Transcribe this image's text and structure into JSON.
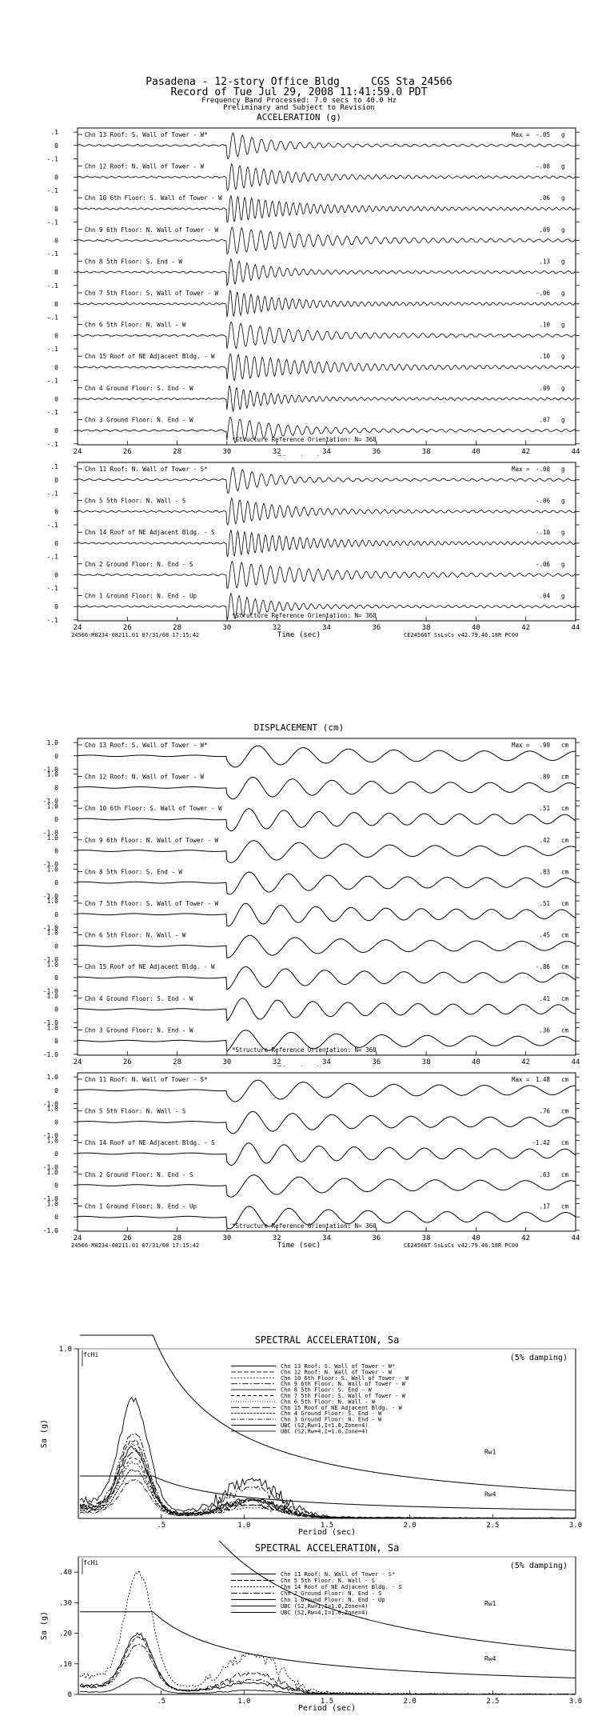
{
  "header": {
    "line1": "Pasadena - 12-story Office Bldg     CGS Sta 24566",
    "line2": "Record of Tue Jul 29, 2008 11:41:59.0 PDT",
    "line3": "Frequency Band Processed: 7.0 secs to 40.0 Hz",
    "line4": "Preliminary and Subject to Revision"
  },
  "chart_data": [
    {
      "type": "line",
      "title": "ACCELERATION (g)",
      "xlabel": "Time (sec)",
      "xlim": [
        24,
        44
      ],
      "xticks": [
        "24",
        "26",
        "28",
        "30",
        "32",
        "34",
        "36",
        "38",
        "40",
        "42",
        "44"
      ],
      "ylim": [
        -0.1,
        0.1
      ],
      "unit": "g",
      "max_label": "Max =",
      "note": "*Structure Reference Orientation: N= 360",
      "footer_left": "24566-M0234-08211.01 07/31/08 17:15:42",
      "footer_right": "CE24566T  SsLsCs  v42.79.46.18R PC00",
      "series": [
        {
          "name": "Chn 13  Roof: S. Wall of Tower - W*",
          "max": "-.05",
          "yticks": [
            ".1",
            "0",
            "-.1"
          ]
        },
        {
          "name": "Chn 12  Roof: N. Wall of Tower - W",
          "max": "-.08",
          "yticks": [
            "0",
            "-.1"
          ]
        },
        {
          "name": "Chn 10  6th Floor: S. Wall of Tower - W",
          "max": ".06",
          "yticks": [
            "0",
            "-.1"
          ]
        },
        {
          "name": "Chn 9  6th Floor: N. Wall of Tower - W",
          "max": ".09",
          "yticks": [
            "0",
            "-.1"
          ]
        },
        {
          "name": "Chn 8  5th Floor: S. End - W",
          "max": ".13",
          "yticks": [
            "0",
            "-.1"
          ]
        },
        {
          "name": "Chn 7  5th Floor: S. Wall of Tower - W",
          "max": "-.06",
          "yticks": [
            "0",
            "-.1"
          ]
        },
        {
          "name": "Chn 6  5th Floor: N. Wall - W",
          "max": ".10",
          "yticks": [
            "0",
            "-.1"
          ]
        },
        {
          "name": "Chn 15  Roof of NE Adjacent Bldg. - W",
          "max": ".10",
          "yticks": [
            "0",
            "-.1"
          ]
        },
        {
          "name": "Chn 4  Ground Floor: S. End - W",
          "max": ".09",
          "yticks": [
            "0",
            "-.1"
          ]
        },
        {
          "name": "Chn 3  Ground Floor: N. End - W",
          "max": ".07",
          "yticks": [
            "0",
            "-.1"
          ]
        }
      ]
    },
    {
      "type": "line",
      "title": "",
      "xlabel": "Time (sec)",
      "xlim": [
        24,
        44
      ],
      "xticks": [
        "24",
        "26",
        "28",
        "30",
        "32",
        "34",
        "36",
        "38",
        "40",
        "42",
        "44"
      ],
      "ylim": [
        -0.1,
        0.1
      ],
      "unit": "g",
      "max_label": "Max =",
      "note": "*Structure Reference Orientation: N= 360",
      "footer_left": "24566-M0234-08211.01 07/31/08 17:15:42",
      "footer_right": "CE24566T  SsLsCs  v42.79.46.18R PC00",
      "series": [
        {
          "name": "Chn 11  Roof: N. Wall of Tower - S*",
          "max": "-.08",
          "yticks": [
            ".1",
            "0",
            "-.1"
          ]
        },
        {
          "name": "Chn 5  5th Floor: N. Wall - S",
          "max": "-.06",
          "yticks": [
            "0",
            "-.1"
          ]
        },
        {
          "name": "Chn 14  Roof of NE Adjacent Bldg. - S",
          "max": "-.10",
          "yticks": [
            "0",
            "-.1"
          ]
        },
        {
          "name": "Chn 2  Ground Floor: N. End - S",
          "max": "-.06",
          "yticks": [
            "0",
            "-.1"
          ]
        },
        {
          "name": "Chn 1  Ground Floor: N. End - Up",
          "max": ".04",
          "yticks": [
            "0",
            "-.1"
          ]
        }
      ]
    },
    {
      "type": "line",
      "title": "DISPLACEMENT (cm)",
      "xlabel": "Time (sec)",
      "xlim": [
        24,
        44
      ],
      "xticks": [
        "24",
        "26",
        "28",
        "30",
        "32",
        "34",
        "36",
        "38",
        "40",
        "42",
        "44"
      ],
      "ylim": [
        -1.0,
        1.0
      ],
      "unit": "cm",
      "max_label": "Max =",
      "note": "*Structure Reference Orientation: N= 360",
      "footer_left": "24566-M0234-08211.01 07/31/08 17:15:42",
      "footer_right": "CE24566T  SsLsCs  v42.79.46.18R PC00",
      "series": [
        {
          "name": "Chn 13  Roof: S. Wall of Tower - W*",
          "max": ".99",
          "yticks": [
            "1.0",
            "0",
            "-1.0"
          ]
        },
        {
          "name": "Chn 12  Roof: N. Wall of Tower - W",
          "max": ".89",
          "yticks": [
            "1.0",
            "0",
            "-1.0"
          ]
        },
        {
          "name": "Chn 10  6th Floor: S. Wall of Tower - W",
          "max": ".51",
          "yticks": [
            "1.0",
            "0",
            "-1.0"
          ]
        },
        {
          "name": "Chn 9  6th Floor: N. Wall of Tower - W",
          "max": ".42",
          "yticks": [
            "1.0",
            "0",
            "-1.0"
          ]
        },
        {
          "name": "Chn 8  5th Floor: S. End - W",
          "max": ".83",
          "yticks": [
            "1.0",
            "0",
            "-1.0"
          ]
        },
        {
          "name": "Chn 7  5th Floor: S. Wall of Tower - W",
          "max": ".51",
          "yticks": [
            "1.0",
            "0",
            "-1.0"
          ]
        },
        {
          "name": "Chn 6  5th Floor: N. Wall - W",
          "max": ".45",
          "yticks": [
            "1.0",
            "0",
            "-1.0"
          ]
        },
        {
          "name": "Chn 15  Roof of NE Adjacent Bldg. - W",
          "max": "-.86",
          "yticks": [
            "1.0",
            "0",
            "-1.0"
          ]
        },
        {
          "name": "Chn 4  Ground Floor: S. End - W",
          "max": ".41",
          "yticks": [
            "1.0",
            "0",
            "-1.0"
          ]
        },
        {
          "name": "Chn 3  Ground Floor: N. End - W",
          "max": ".36",
          "yticks": [
            "1.0",
            "0",
            "-1.0"
          ]
        }
      ]
    },
    {
      "type": "line",
      "title": "",
      "xlabel": "Time (sec)",
      "xlim": [
        24,
        44
      ],
      "xticks": [
        "24",
        "26",
        "28",
        "30",
        "32",
        "34",
        "36",
        "38",
        "40",
        "42",
        "44"
      ],
      "ylim": [
        -1.0,
        1.0
      ],
      "unit": "cm",
      "max_label": "Max =",
      "note": "*Structure Reference Orientation: N= 360",
      "footer_left": "24566-M0234-08211.01 07/31/08 17:15:42",
      "footer_right": "CE24566T  SsLsCs  v42.79.46.18R PC00",
      "series": [
        {
          "name": "Chn 11  Roof: N. Wall of Tower - S*",
          "max": "1.48",
          "yticks": [
            "1.0",
            "0",
            "-1.0"
          ]
        },
        {
          "name": "Chn 5  5th Floor: N. Wall - S",
          "max": ".76",
          "yticks": [
            "1.0",
            "0",
            "-1.0"
          ]
        },
        {
          "name": "Chn 14  Roof of NE Adjacent Bldg. - S",
          "max": "-1.42",
          "yticks": [
            "1.0",
            "0",
            "-1.0"
          ]
        },
        {
          "name": "Chn 2  Ground Floor: N. End - S",
          "max": ".63",
          "yticks": [
            "1.0",
            "0",
            "-1.0"
          ]
        },
        {
          "name": "Chn 1  Ground Floor: N. End - Up",
          "max": ".17",
          "yticks": [
            "1.0",
            "0",
            "-1.0"
          ]
        }
      ]
    },
    {
      "type": "line",
      "title": "SPECTRAL ACCELERATION, Sa",
      "xlabel": "Period (sec)",
      "ylabel": "Sa (g)",
      "xlim": [
        0,
        3.0
      ],
      "ylim": [
        0,
        1.0
      ],
      "xticks": [
        ".5",
        "1.0",
        "1.5",
        "2.0",
        "2.5",
        "3.0"
      ],
      "yticks": [
        "1.0"
      ],
      "damping_label": "(5% damping)",
      "fchi_label": "fcHi",
      "ubc_labels": [
        "Rw1",
        "Rw4"
      ],
      "legend": [
        "Chn 13  Roof: S. Wall of Tower - W*",
        "Chn 12  Roof: N. Wall of Tower - W",
        "Chn 10  6th Floor: S. Wall of Tower - W",
        "Chn 9  6th Floor: N. Wall of Tower - W",
        "Chn 8  5th Floor: S. End - W",
        "Chn 7  5th Floor: S. Wall of Tower - W",
        "Chn 6  5th Floor: N. Wall - W",
        "Chn 15  Roof of NE Adjacent Bldg. - W",
        "Chn 4  Ground Floor: S. End - W",
        "Chn 3  Ground Floor: N. End - W",
        "UBC (S2,Rw=1,I=1.0,Zone=4)",
        "UBC (S2,Rw=4,I=1.0,Zone=4)"
      ],
      "peaks_g": [
        0.38,
        0.42,
        0.3,
        0.46,
        0.64,
        0.33,
        0.4,
        0.36,
        0.26,
        0.21
      ],
      "peak_period_sec": 0.34
    },
    {
      "type": "line",
      "title": "SPECTRAL ACCELERATION, Sa",
      "xlabel": "Period (sec)",
      "ylabel": "Sa (g)",
      "xlim": [
        0,
        3.0
      ],
      "ylim": [
        0,
        0.45
      ],
      "xticks": [
        ".5",
        "1.0",
        "1.5",
        "2.0",
        "2.5",
        "3.0"
      ],
      "yticks": [
        ".40",
        ".30",
        ".20",
        ".10",
        "0"
      ],
      "damping_label": "(5% damping)",
      "fchi_label": "fcHi",
      "ubc_labels": [
        "Rw1",
        "Rw4"
      ],
      "legend": [
        "Chn 11  Roof: N. Wall of Tower - S*",
        "Chn 5  5th Floor: N. Wall - S",
        "Chn 14  Roof of NE Adjacent Bldg. - S",
        "Chn 2  Ground Floor: N. End - S",
        "Chn 1  Ground Floor: N. End - Up",
        "UBC (S2,Rw=1,I=1.0,Zone=4)",
        "UBC (S2,Rw=4,I=1.0,Zone=4)"
      ],
      "peaks_g": [
        0.18,
        0.17,
        0.36,
        0.15,
        0.05
      ],
      "peak_period_sec": 0.35
    }
  ]
}
